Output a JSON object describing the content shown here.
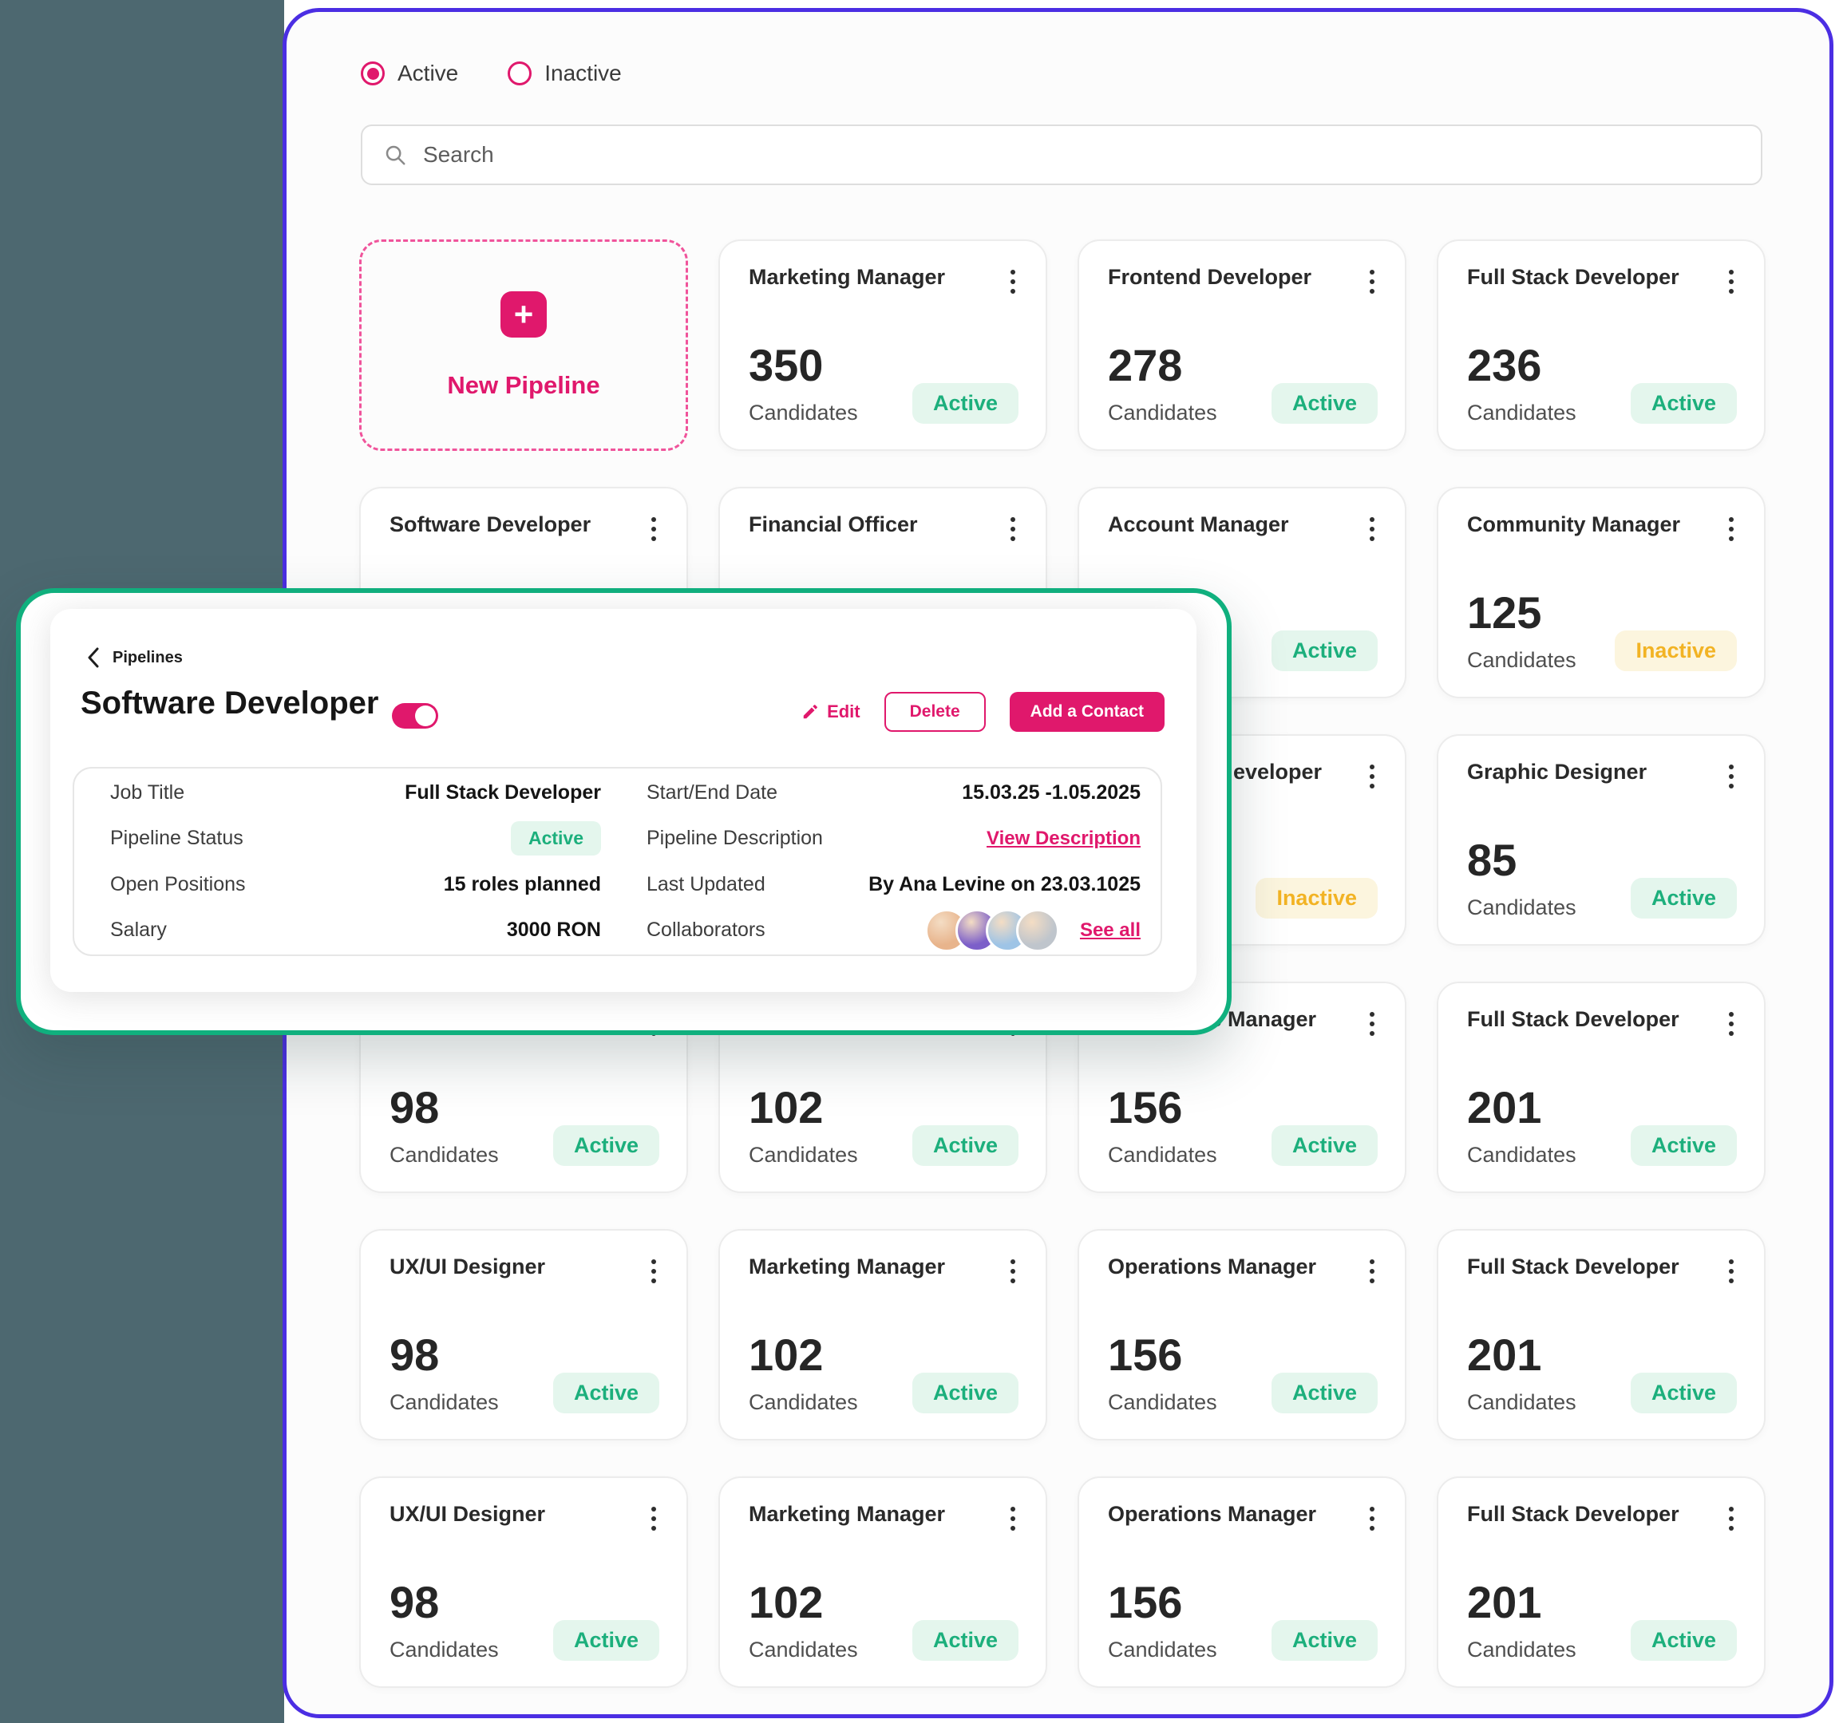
{
  "colors": {
    "accent_pink": "#E0186C",
    "dashed_pink": "#F0549B",
    "active_text": "#1CAF7C",
    "active_bg": "#E4F6ED",
    "inactive_text": "#F2B324",
    "inactive_bg": "#FCF5DE",
    "panel_border": "#4B2EE3",
    "overlay_border": "#10B07E",
    "background_strip": "#4D6870",
    "avatar_tones": [
      "#E8B48C",
      "#7C5FC9",
      "#9EC4E6",
      "#BFC5CC"
    ]
  },
  "filters": {
    "options": [
      {
        "label": "Active",
        "selected": true
      },
      {
        "label": "Inactive",
        "selected": false
      }
    ]
  },
  "search": {
    "placeholder": "Search"
  },
  "card_labels": {
    "candidates": "Candidates"
  },
  "pipelines": [
    {
      "kind": "new",
      "label": "New Pipeline"
    },
    {
      "title": "Marketing Manager",
      "candidates": "350",
      "status": "Active"
    },
    {
      "title": "Frontend Developer",
      "candidates": "278",
      "status": "Active"
    },
    {
      "title": "Full Stack Developer",
      "candidates": "236",
      "status": "Active"
    },
    {
      "title": "Software Developer",
      "candidates": null,
      "status": null
    },
    {
      "title": "Financial Officer",
      "candidates": null,
      "status": null
    },
    {
      "title": "Account Manager",
      "candidates": null,
      "status": "Active"
    },
    {
      "title": "Community Manager",
      "candidates": "125",
      "status": "Inactive"
    },
    {
      "title": null,
      "candidates": null,
      "status": null
    },
    {
      "title": null,
      "candidates": null,
      "status": null
    },
    {
      "title": "eveloper",
      "candidates": null,
      "status": "Inactive",
      "indent": true
    },
    {
      "title": "Graphic Designer",
      "candidates": "85",
      "status": "Active"
    },
    {
      "title": "UX/UI Designer",
      "candidates": "98",
      "status": "Active"
    },
    {
      "title": "Marketing Manager",
      "candidates": "102",
      "status": "Active"
    },
    {
      "title": "Operations Manager",
      "candidates": "156",
      "status": "Active"
    },
    {
      "title": "Full Stack Developer",
      "candidates": "201",
      "status": "Active"
    },
    {
      "title": "UX/UI Designer",
      "candidates": "98",
      "status": "Active"
    },
    {
      "title": "Marketing Manager",
      "candidates": "102",
      "status": "Active"
    },
    {
      "title": "Operations Manager",
      "candidates": "156",
      "status": "Active"
    },
    {
      "title": "Full Stack Developer",
      "candidates": "201",
      "status": "Active"
    },
    {
      "title": "UX/UI Designer",
      "candidates": "98",
      "status": "Active"
    },
    {
      "title": "Marketing Manager",
      "candidates": "102",
      "status": "Active"
    },
    {
      "title": "Operations Manager",
      "candidates": "156",
      "status": "Active"
    },
    {
      "title": "Full Stack Developer",
      "candidates": "201",
      "status": "Active"
    }
  ],
  "detail_overlay": {
    "breadcrumb": "Pipelines",
    "title": "Software Developer",
    "toggle_on": true,
    "actions": {
      "edit": "Edit",
      "delete": "Delete",
      "add_contact": "Add a Contact"
    },
    "fields": {
      "job_title": {
        "label": "Job Title",
        "value": "Full Stack Developer"
      },
      "pipeline_status": {
        "label": "Pipeline Status",
        "value": "Active"
      },
      "open_positions": {
        "label": "Open Positions",
        "value": "15 roles planned"
      },
      "salary": {
        "label": "Salary",
        "value": "3000 RON"
      },
      "start_end_date": {
        "label": "Start/End Date",
        "value": "15.03.25 -1.05.2025"
      },
      "pipeline_description": {
        "label": "Pipeline Description",
        "link": "View Description"
      },
      "last_updated": {
        "label": "Last Updated",
        "value": "By Ana Levine on 23.03.1025"
      },
      "collaborators": {
        "label": "Collaborators",
        "avatar_count": 4,
        "link": "See all"
      }
    }
  }
}
